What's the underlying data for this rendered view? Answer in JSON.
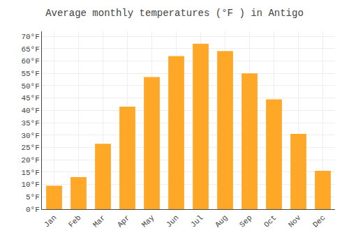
{
  "chart_data": {
    "type": "bar",
    "title": "Average monthly temperatures (°F ) in Antigo",
    "categories": [
      "Jan",
      "Feb",
      "Mar",
      "Apr",
      "May",
      "Jun",
      "Jul",
      "Aug",
      "Sep",
      "Oct",
      "Nov",
      "Dec"
    ],
    "values": [
      9.5,
      13.0,
      26.5,
      41.5,
      53.5,
      62.0,
      67.0,
      64.0,
      55.0,
      44.5,
      30.5,
      15.5
    ],
    "color": "#FFA726",
    "ylim": [
      0,
      72
    ],
    "yticks": [
      {
        "value": 0,
        "label": "0°F"
      },
      {
        "value": 5,
        "label": "5°F"
      },
      {
        "value": 10,
        "label": "10°F"
      },
      {
        "value": 15,
        "label": "15°F"
      },
      {
        "value": 20,
        "label": "20°F"
      },
      {
        "value": 25,
        "label": "25°F"
      },
      {
        "value": 30,
        "label": "30°F"
      },
      {
        "value": 35,
        "label": "35°F"
      },
      {
        "value": 40,
        "label": "40°F"
      },
      {
        "value": 45,
        "label": "45°F"
      },
      {
        "value": 50,
        "label": "50°F"
      },
      {
        "value": 55,
        "label": "55°F"
      },
      {
        "value": 60,
        "label": "60°F"
      },
      {
        "value": 65,
        "label": "65°F"
      },
      {
        "value": 70,
        "label": "70°F"
      }
    ],
    "grid": true
  }
}
